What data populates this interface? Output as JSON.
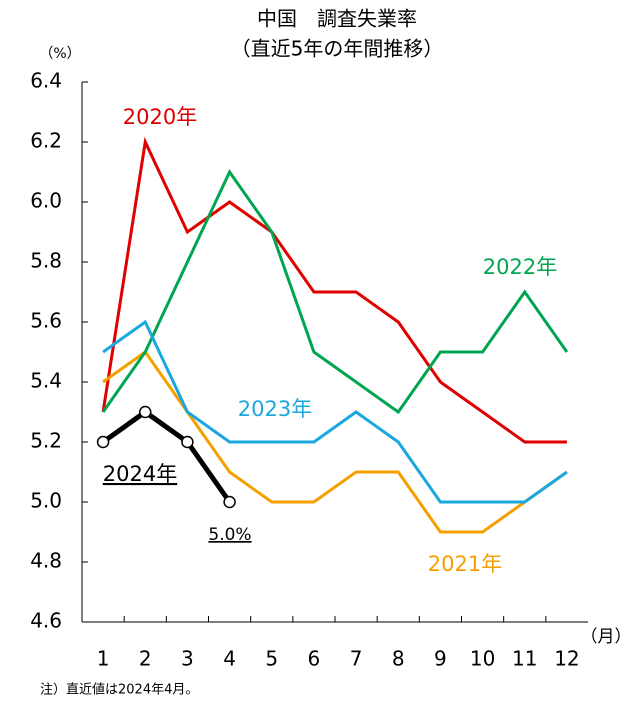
{
  "chart_data": {
    "type": "line",
    "title": "中国　調査失業率",
    "subtitle": "（直近5年の年間推移）",
    "y_label": "（%）",
    "x_label": "（月）",
    "note": "注）直近値は2024年4月。",
    "categories": [
      "1",
      "2",
      "3",
      "4",
      "5",
      "6",
      "7",
      "8",
      "9",
      "10",
      "11",
      "12"
    ],
    "series": [
      {
        "name": "2020年",
        "color": "#e00000",
        "values": [
          5.3,
          6.2,
          5.9,
          6.0,
          5.9,
          5.7,
          5.7,
          5.6,
          5.4,
          5.3,
          5.2,
          5.2
        ]
      },
      {
        "name": "2021年",
        "color": "#f5a000",
        "values": [
          5.4,
          5.5,
          5.3,
          5.1,
          5.0,
          5.0,
          5.1,
          5.1,
          4.9,
          4.9,
          5.0,
          5.1
        ]
      },
      {
        "name": "2022年",
        "color": "#00a550",
        "values": [
          5.3,
          5.5,
          5.8,
          6.1,
          5.9,
          5.5,
          5.4,
          5.3,
          5.5,
          5.5,
          5.7,
          5.5
        ]
      },
      {
        "name": "2023年",
        "color": "#1aa7e0",
        "values": [
          5.5,
          5.6,
          5.3,
          5.2,
          5.2,
          5.2,
          5.3,
          5.2,
          5.0,
          5.0,
          5.0,
          5.1
        ]
      },
      {
        "name": "2024年",
        "color": "#000000",
        "markers": true,
        "values": [
          5.2,
          5.3,
          5.2,
          5.0,
          null,
          null,
          null,
          null,
          null,
          null,
          null,
          null
        ]
      }
    ],
    "annotations": [
      {
        "text": "5.0%"
      }
    ],
    "ylim": [
      4.6,
      6.4
    ],
    "yticks": [
      4.6,
      4.8,
      {
        "value": 5,
        "label": "5.0"
      },
      5.2,
      5.4,
      5.6,
      5.8,
      {
        "value": 6,
        "label": "6.0"
      },
      6.2,
      6.4
    ],
    "grid": false
  }
}
